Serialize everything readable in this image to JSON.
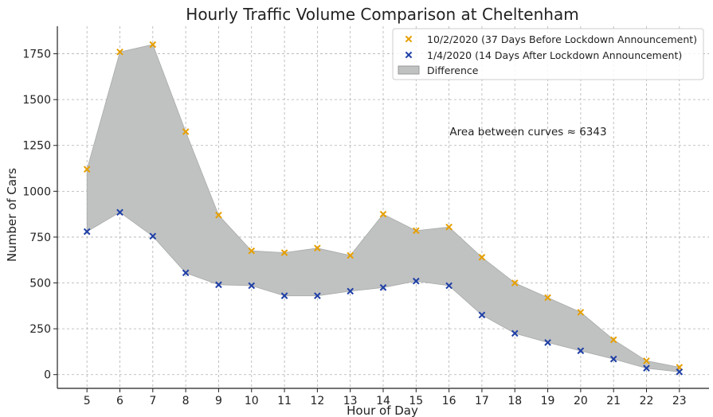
{
  "chart_data": {
    "type": "line",
    "title": "Hourly Traffic Volume Comparison at Cheltenham",
    "xlabel": "Hour of Day",
    "ylabel": "Number of Cars",
    "x": [
      5,
      6,
      7,
      8,
      9,
      10,
      11,
      12,
      13,
      14,
      15,
      16,
      17,
      18,
      19,
      20,
      21,
      22,
      23
    ],
    "xlim": [
      4.1,
      23.9
    ],
    "ylim": [
      -75,
      1900
    ],
    "yticks": [
      0,
      250,
      500,
      750,
      1000,
      1250,
      1500,
      1750
    ],
    "grid": true,
    "legend_position": "top-right",
    "series": [
      {
        "name": "10/2/2020 (37 Days Before Lockdown Announcement)",
        "marker": "x",
        "color": "#e69f00",
        "values": [
          1120,
          1760,
          1800,
          1325,
          870,
          675,
          665,
          690,
          650,
          875,
          785,
          805,
          640,
          500,
          420,
          340,
          190,
          75,
          40
        ]
      },
      {
        "name": "1/4/2020 (14 Days After Lockdown Announcement)",
        "marker": "x",
        "color": "#1f3fa6",
        "values": [
          780,
          885,
          755,
          555,
          490,
          485,
          430,
          430,
          455,
          475,
          510,
          485,
          325,
          225,
          175,
          130,
          85,
          35,
          15
        ]
      }
    ],
    "fill": {
      "name": "Difference",
      "color": "#c0c2c2"
    },
    "annotation": "Area between curves ≈ 6343"
  }
}
